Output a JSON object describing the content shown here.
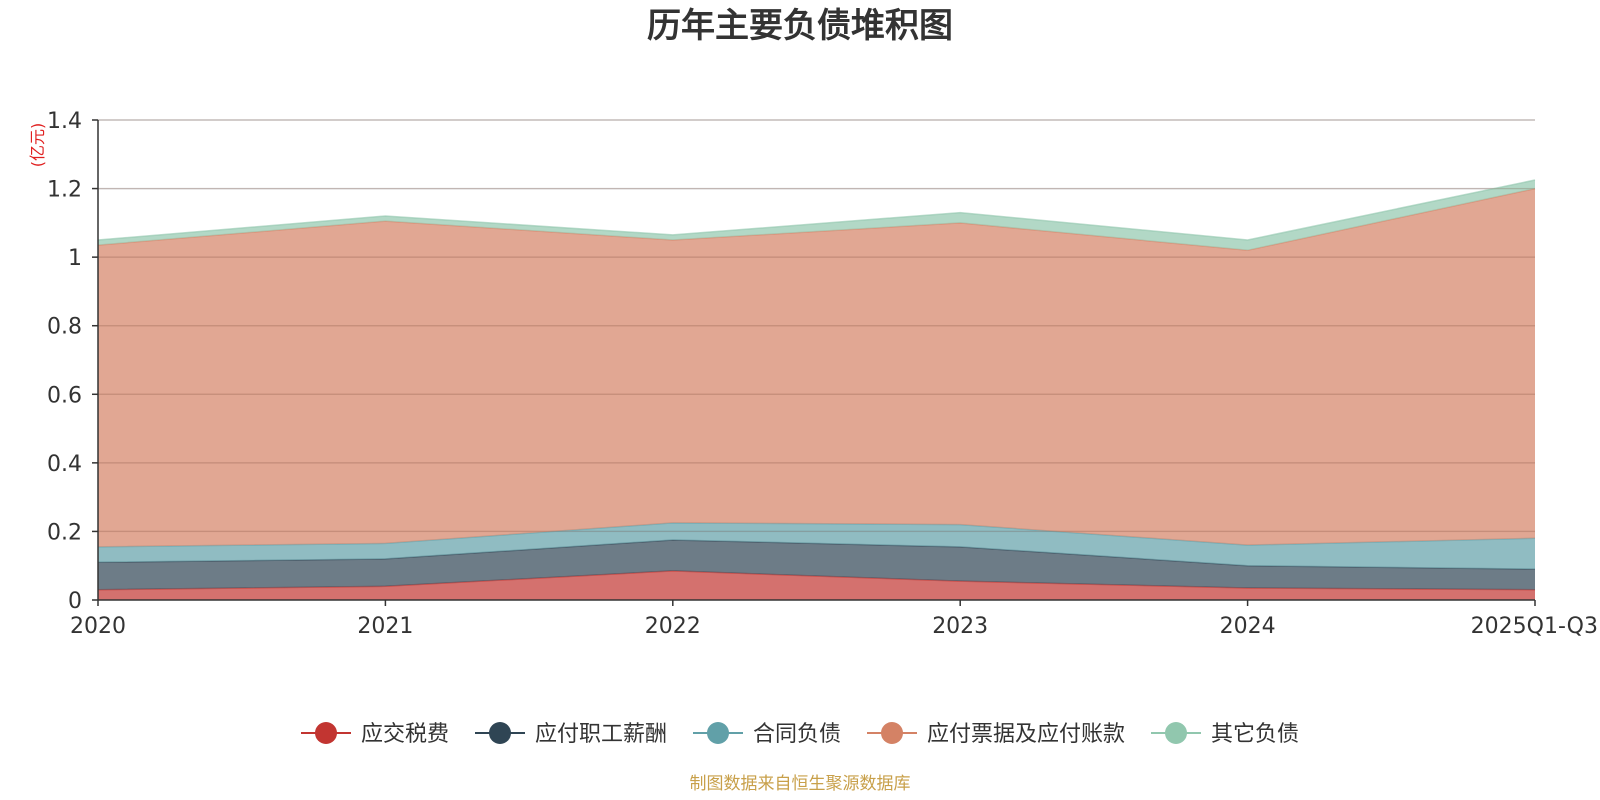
{
  "chart_data": {
    "type": "area",
    "stacked": true,
    "title": "历年主要负债堆积图",
    "unit_label": "(亿元)",
    "categories": [
      "2020",
      "2021",
      "2022",
      "2023",
      "2024",
      "2025Q1-Q3"
    ],
    "y_ticks": [
      "0",
      "0.2",
      "0.4",
      "0.6",
      "0.8",
      "1",
      "1.2",
      "1.4"
    ],
    "ylim": [
      0,
      1.4
    ],
    "legend_position": "bottom",
    "series": [
      {
        "name": "应交税费",
        "color": "#c23531",
        "values": [
          0.03,
          0.04,
          0.085,
          0.055,
          0.035,
          0.03
        ]
      },
      {
        "name": "应付职工薪酬",
        "color": "#2f4554",
        "values": [
          0.08,
          0.08,
          0.09,
          0.1,
          0.065,
          0.06
        ]
      },
      {
        "name": "合同负债",
        "color": "#61a0a8",
        "values": [
          0.045,
          0.045,
          0.05,
          0.065,
          0.06,
          0.09
        ]
      },
      {
        "name": "应付票据及应付账款",
        "color": "#d48265",
        "values": [
          0.88,
          0.94,
          0.825,
          0.88,
          0.86,
          1.02
        ]
      },
      {
        "name": "其它负债",
        "color": "#91c7ae",
        "values": [
          0.015,
          0.015,
          0.015,
          0.03,
          0.03,
          0.025
        ]
      }
    ],
    "source_note": "制图数据来自恒生聚源数据库"
  }
}
